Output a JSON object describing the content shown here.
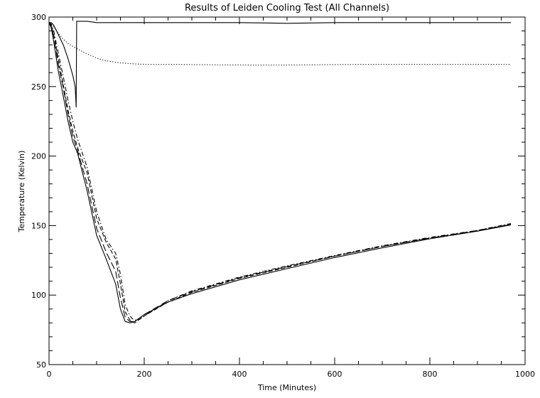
{
  "chart_data": {
    "type": "line",
    "title": "Results of Leiden Cooling Test (All Channels)",
    "xlabel": "Time (Minutes)",
    "ylabel": "Temperature (Kelvin)",
    "xlim": [
      0,
      1000
    ],
    "ylim": [
      50,
      300
    ],
    "x_ticks": [
      0,
      200,
      400,
      600,
      800,
      1000
    ],
    "y_ticks": [
      50,
      100,
      150,
      200,
      250,
      300
    ],
    "x_minor_step": 50,
    "y_minor_step": 10,
    "grid": false,
    "legend": "none",
    "series": [
      {
        "style": "solid",
        "x": [
          0,
          5,
          10,
          20,
          30,
          40,
          50,
          55,
          57,
          58,
          60,
          80,
          100,
          150,
          160,
          170,
          180,
          200,
          250,
          300,
          400,
          500,
          600,
          700,
          800,
          900,
          970
        ],
        "y": [
          296,
          296,
          294,
          287,
          280,
          270,
          258,
          250,
          235,
          297,
          297,
          297,
          296,
          296,
          296,
          296,
          296,
          296,
          296,
          296,
          296,
          295.5,
          296,
          296,
          296,
          296,
          296
        ]
      },
      {
        "style": "dotted",
        "x": [
          0,
          10,
          20,
          30,
          40,
          50,
          60,
          80,
          100,
          120,
          150,
          180,
          200,
          250,
          300,
          400,
          500,
          600,
          700,
          800,
          900,
          970
        ],
        "y": [
          296,
          293,
          288,
          284,
          281,
          279,
          277,
          273.5,
          270.5,
          268.5,
          267,
          266.3,
          266,
          266,
          265.8,
          265.5,
          265.5,
          265.8,
          266,
          266,
          266,
          266
        ]
      },
      {
        "style": "solid",
        "x": [
          0,
          5,
          10,
          20,
          30,
          40,
          50,
          60,
          80,
          100,
          120,
          140,
          150,
          160,
          165,
          170,
          180,
          200,
          250,
          300,
          400,
          500,
          600,
          700,
          800,
          900,
          970
        ],
        "y": [
          296,
          292,
          282,
          260,
          243,
          225,
          210,
          202,
          175,
          143,
          126,
          108,
          90,
          81,
          80.5,
          80,
          81,
          86,
          95,
          101,
          111,
          119,
          127,
          134,
          140.5,
          146,
          150.5
        ]
      },
      {
        "style": "dashed",
        "x": [
          0,
          5,
          10,
          20,
          30,
          40,
          50,
          60,
          80,
          100,
          120,
          140,
          150,
          160,
          170,
          180,
          200,
          250,
          300,
          400,
          500,
          600,
          700,
          800,
          900,
          970
        ],
        "y": [
          296,
          294,
          287,
          269,
          251,
          233,
          218,
          206,
          188,
          155,
          138,
          126,
          108,
          88,
          82,
          80,
          85,
          95,
          102,
          112,
          120,
          128,
          135,
          141,
          146,
          151
        ]
      },
      {
        "style": "dashdot",
        "x": [
          0,
          5,
          10,
          20,
          30,
          40,
          50,
          60,
          80,
          100,
          120,
          140,
          150,
          160,
          170,
          175,
          180,
          190,
          200,
          250,
          300,
          400,
          500,
          600,
          700,
          800,
          900,
          970
        ],
        "y": [
          296,
          295,
          290,
          273,
          257,
          240,
          225,
          212,
          192,
          160,
          140,
          130,
          115,
          93,
          85,
          83,
          82,
          82.5,
          85,
          96,
          103,
          113,
          121,
          128.5,
          135.5,
          141.5,
          146.5,
          151.5
        ]
      },
      {
        "style": "longdash",
        "x": [
          0,
          5,
          10,
          20,
          30,
          40,
          50,
          60,
          80,
          100,
          120,
          140,
          150,
          160,
          170,
          180,
          200,
          250,
          300,
          400,
          500,
          600,
          700,
          800,
          900,
          970
        ],
        "y": [
          296,
          293,
          286,
          265,
          249,
          230,
          214,
          204,
          180,
          148,
          131,
          117,
          98,
          84,
          81,
          81,
          86,
          96,
          102.5,
          112.5,
          120.5,
          128,
          135,
          141,
          146.5,
          150.8
        ]
      }
    ]
  }
}
